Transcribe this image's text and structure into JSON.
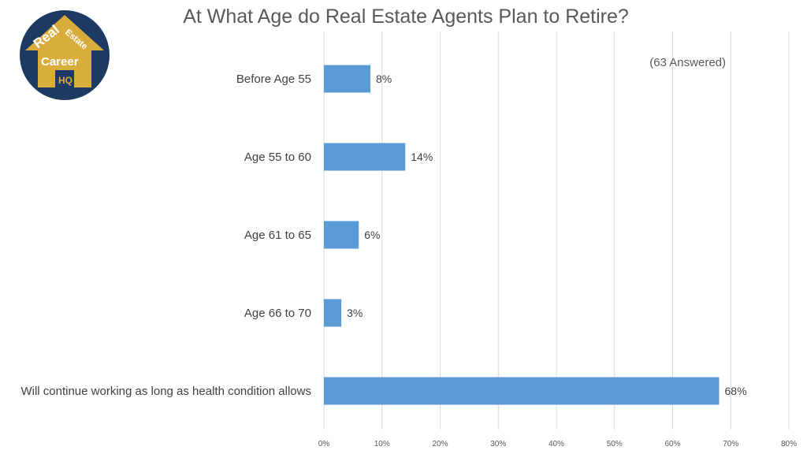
{
  "logo": {
    "line1": "Real",
    "line2": "Estate",
    "line3": "Career",
    "line4": "HQ",
    "bg_color": "#1d3a63",
    "house_color": "#d9ad3b"
  },
  "chart_data": {
    "type": "bar",
    "orientation": "horizontal",
    "title": "At What Age do Real Estate Agents Plan to Retire?",
    "annotation": "(63 Answered)",
    "categories": [
      "Before Age 55",
      "Age 55 to 60",
      "Age 61 to 65",
      "Age 66 to 70",
      "Will continue working as long as health condition allows"
    ],
    "values": [
      8,
      14,
      6,
      3,
      68
    ],
    "value_labels": [
      "8%",
      "14%",
      "6%",
      "3%",
      "68%"
    ],
    "xlim": [
      0,
      80
    ],
    "xticks": [
      0,
      10,
      20,
      30,
      40,
      50,
      60,
      70,
      80
    ],
    "xtick_labels": [
      "0%",
      "10%",
      "20%",
      "30%",
      "40%",
      "50%",
      "60%",
      "70%",
      "80%"
    ],
    "grid": true,
    "bar_color": "#5b9bd5",
    "grid_color": "#d9d9d9"
  }
}
